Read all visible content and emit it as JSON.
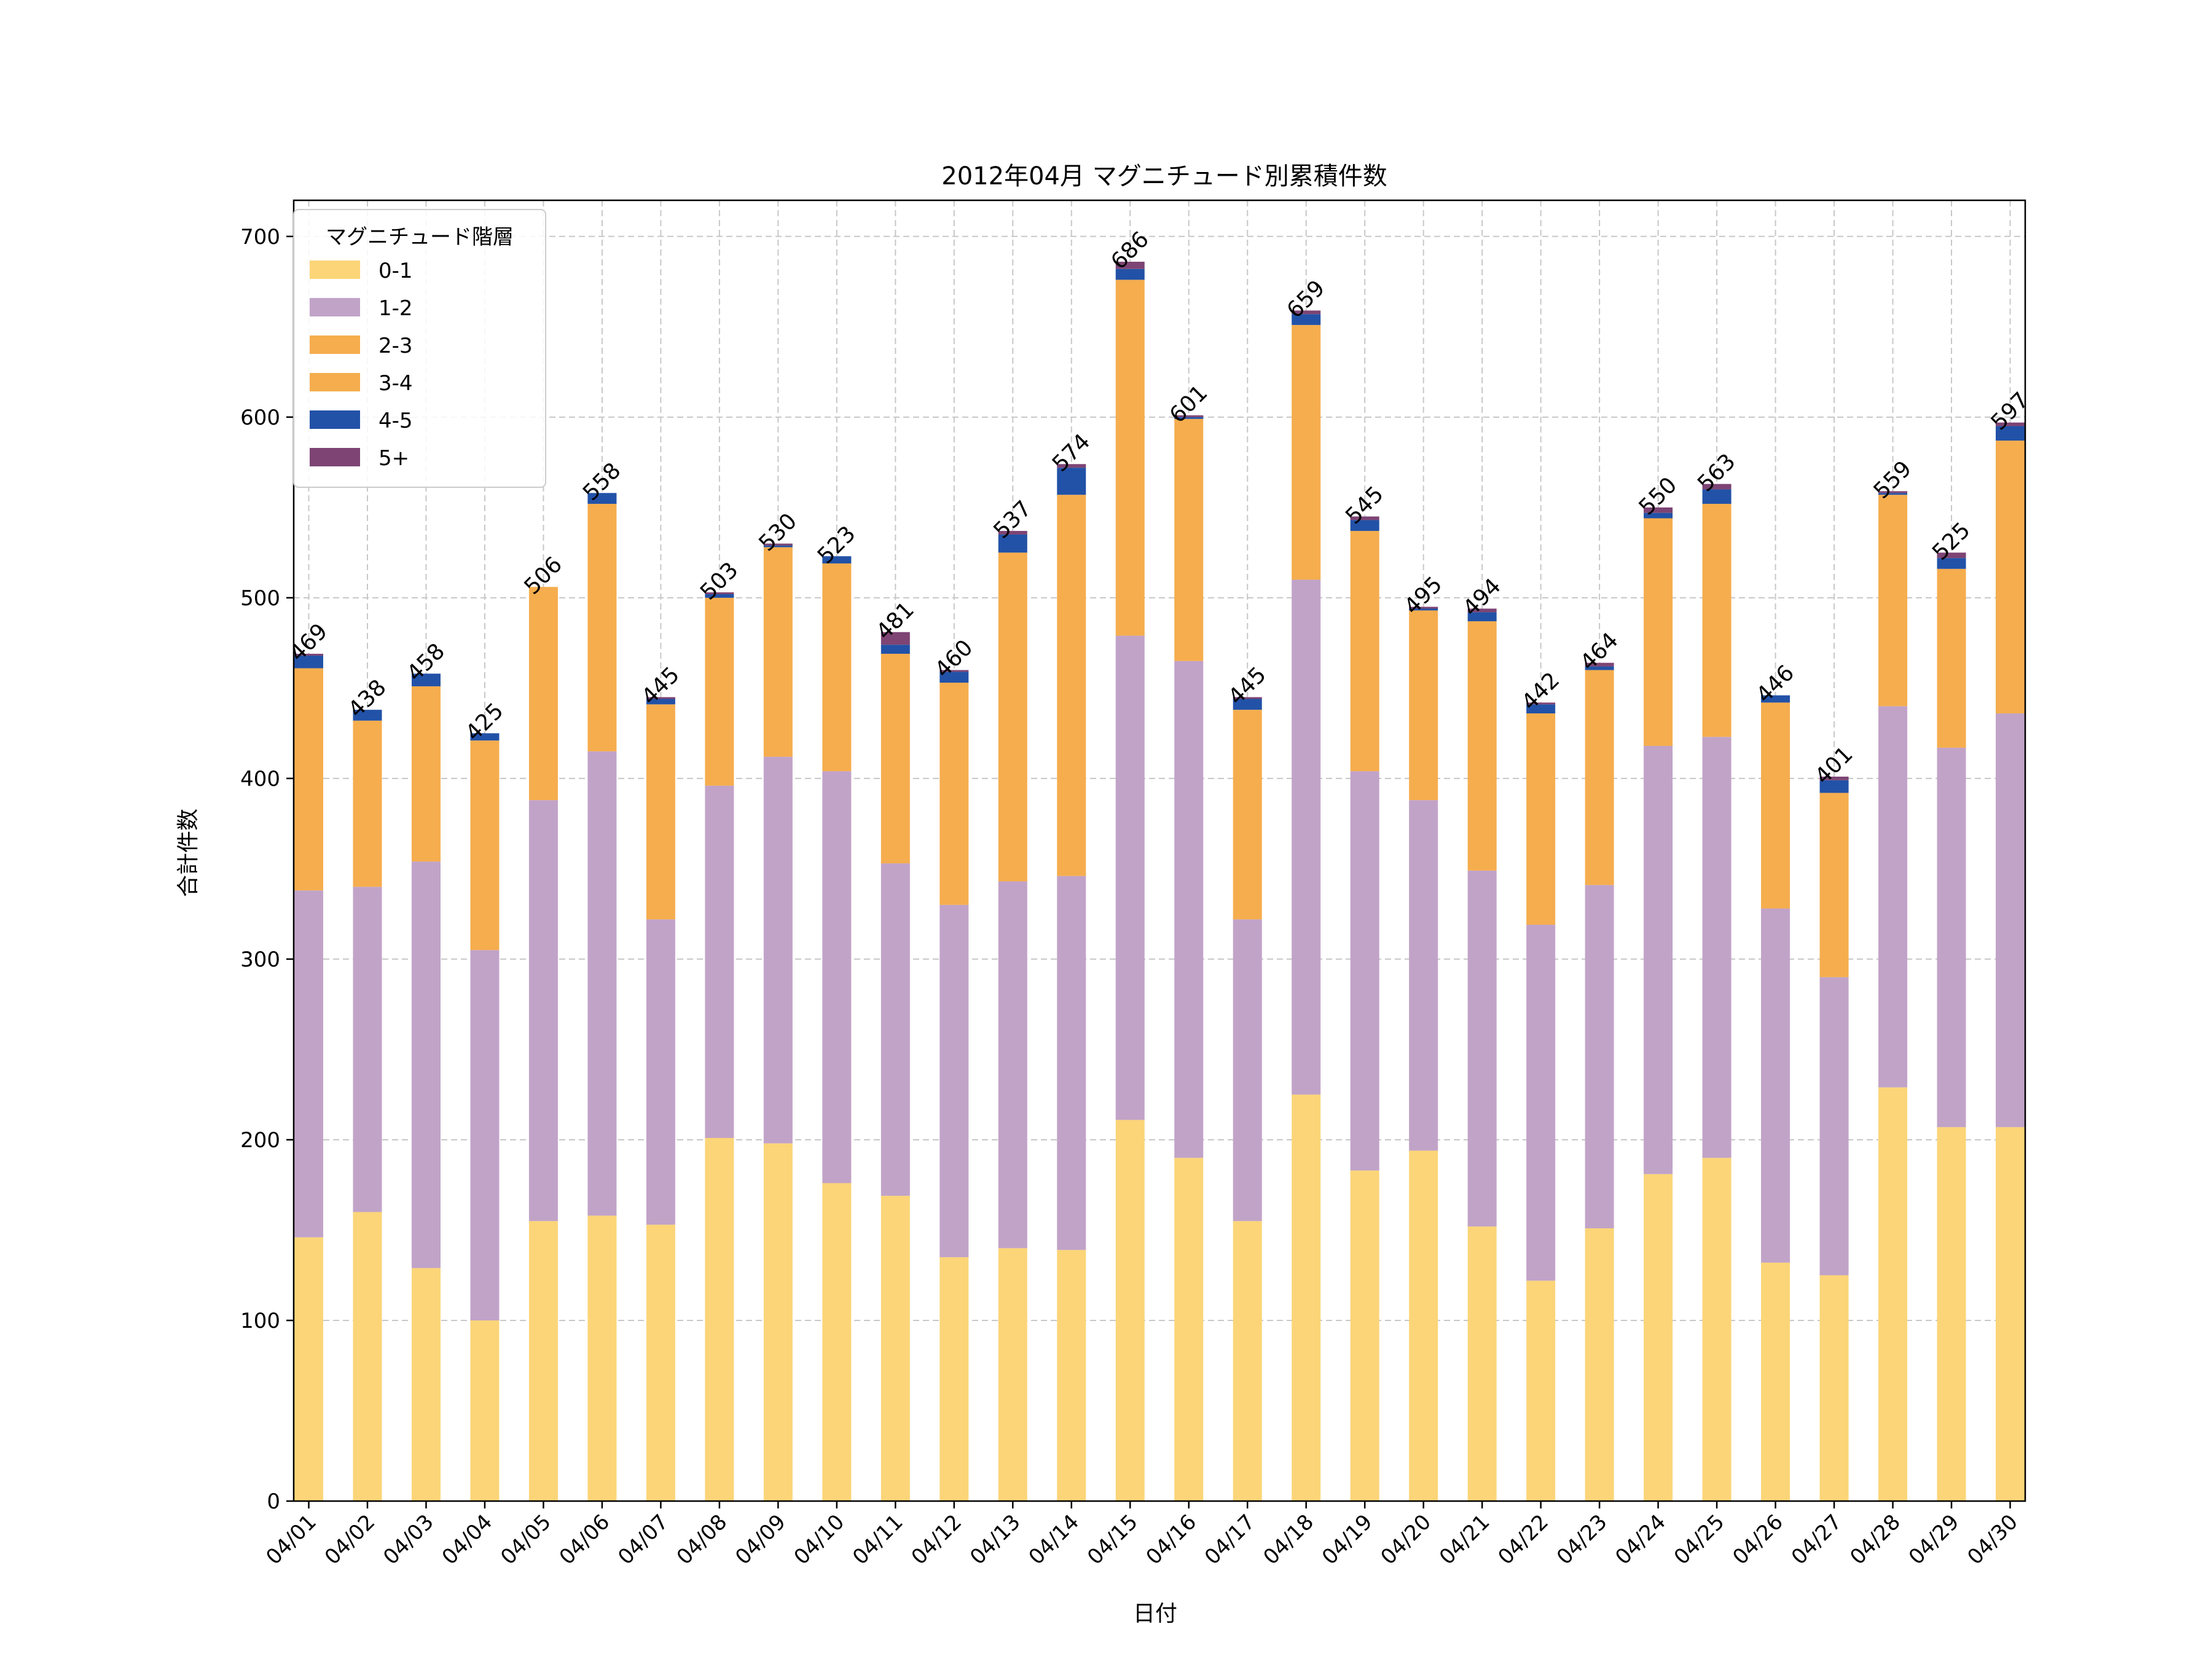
{
  "chart_data": {
    "type": "bar",
    "stacked": true,
    "title": "2012年04月 マグニチュード別累積件数",
    "xlabel": "日付",
    "ylabel": "合計件数",
    "ylim": [
      0,
      720
    ],
    "yticks": [
      0,
      100,
      200,
      300,
      400,
      500,
      600,
      700
    ],
    "grid": true,
    "legend_title": "マグニチュード階層",
    "legend_position": "top-left",
    "categories": [
      "04/01",
      "04/02",
      "04/03",
      "04/04",
      "04/05",
      "04/06",
      "04/07",
      "04/08",
      "04/09",
      "04/10",
      "04/11",
      "04/12",
      "04/13",
      "04/14",
      "04/15",
      "04/16",
      "04/17",
      "04/18",
      "04/19",
      "04/20",
      "04/21",
      "04/22",
      "04/23",
      "04/24",
      "04/25",
      "04/26",
      "04/27",
      "04/28",
      "04/29",
      "04/30"
    ],
    "totals": [
      469,
      438,
      458,
      425,
      506,
      558,
      445,
      503,
      530,
      523,
      481,
      460,
      537,
      574,
      686,
      601,
      445,
      659,
      545,
      495,
      494,
      442,
      464,
      550,
      563,
      446,
      401,
      559,
      525,
      597
    ],
    "series": [
      {
        "name": "0-1",
        "color": "#fbd578",
        "values": [
          146,
          160,
          129,
          100,
          155,
          158,
          153,
          201,
          198,
          176,
          169,
          135,
          140,
          139,
          211,
          190,
          155,
          225,
          183,
          194,
          152,
          122,
          151,
          181,
          190,
          132,
          125,
          229,
          207,
          207
        ]
      },
      {
        "name": "1-2",
        "color": "#c1a3c8",
        "values": [
          192,
          180,
          225,
          205,
          233,
          257,
          169,
          195,
          214,
          228,
          184,
          195,
          203,
          207,
          268,
          275,
          167,
          285,
          221,
          194,
          197,
          197,
          190,
          237,
          233,
          196,
          165,
          211,
          210,
          229
        ]
      },
      {
        "name": "2-3",
        "color": "#f5ad4e",
        "values": [
          123,
          92,
          97,
          116,
          118,
          137,
          119,
          104,
          116,
          115,
          116,
          123,
          182,
          211,
          197,
          134,
          116,
          141,
          133,
          105,
          138,
          117,
          119,
          126,
          129,
          114,
          102,
          117,
          99,
          151
        ]
      },
      {
        "name": "3-4",
        "color": "#f5ad4e",
        "values": [
          0,
          0,
          0,
          0,
          0,
          0,
          0,
          0,
          0,
          0,
          0,
          0,
          0,
          0,
          0,
          0,
          0,
          0,
          0,
          0,
          0,
          0,
          0,
          0,
          0,
          0,
          0,
          0,
          0,
          0
        ]
      },
      {
        "name": "4-5",
        "color": "#2252a7",
        "values": [
          7,
          6,
          7,
          4,
          0,
          6,
          3,
          2,
          1,
          4,
          5,
          6,
          10,
          15,
          6,
          1,
          6,
          6,
          6,
          1,
          5,
          5,
          2,
          3,
          8,
          4,
          7,
          1,
          6,
          8
        ]
      },
      {
        "name": "5+",
        "color": "#7d4474",
        "values": [
          1,
          0,
          0,
          0,
          0,
          0,
          1,
          1,
          1,
          0,
          7,
          1,
          2,
          2,
          4,
          1,
          1,
          2,
          2,
          1,
          2,
          1,
          2,
          3,
          3,
          0,
          2,
          1,
          3,
          2
        ]
      }
    ]
  }
}
